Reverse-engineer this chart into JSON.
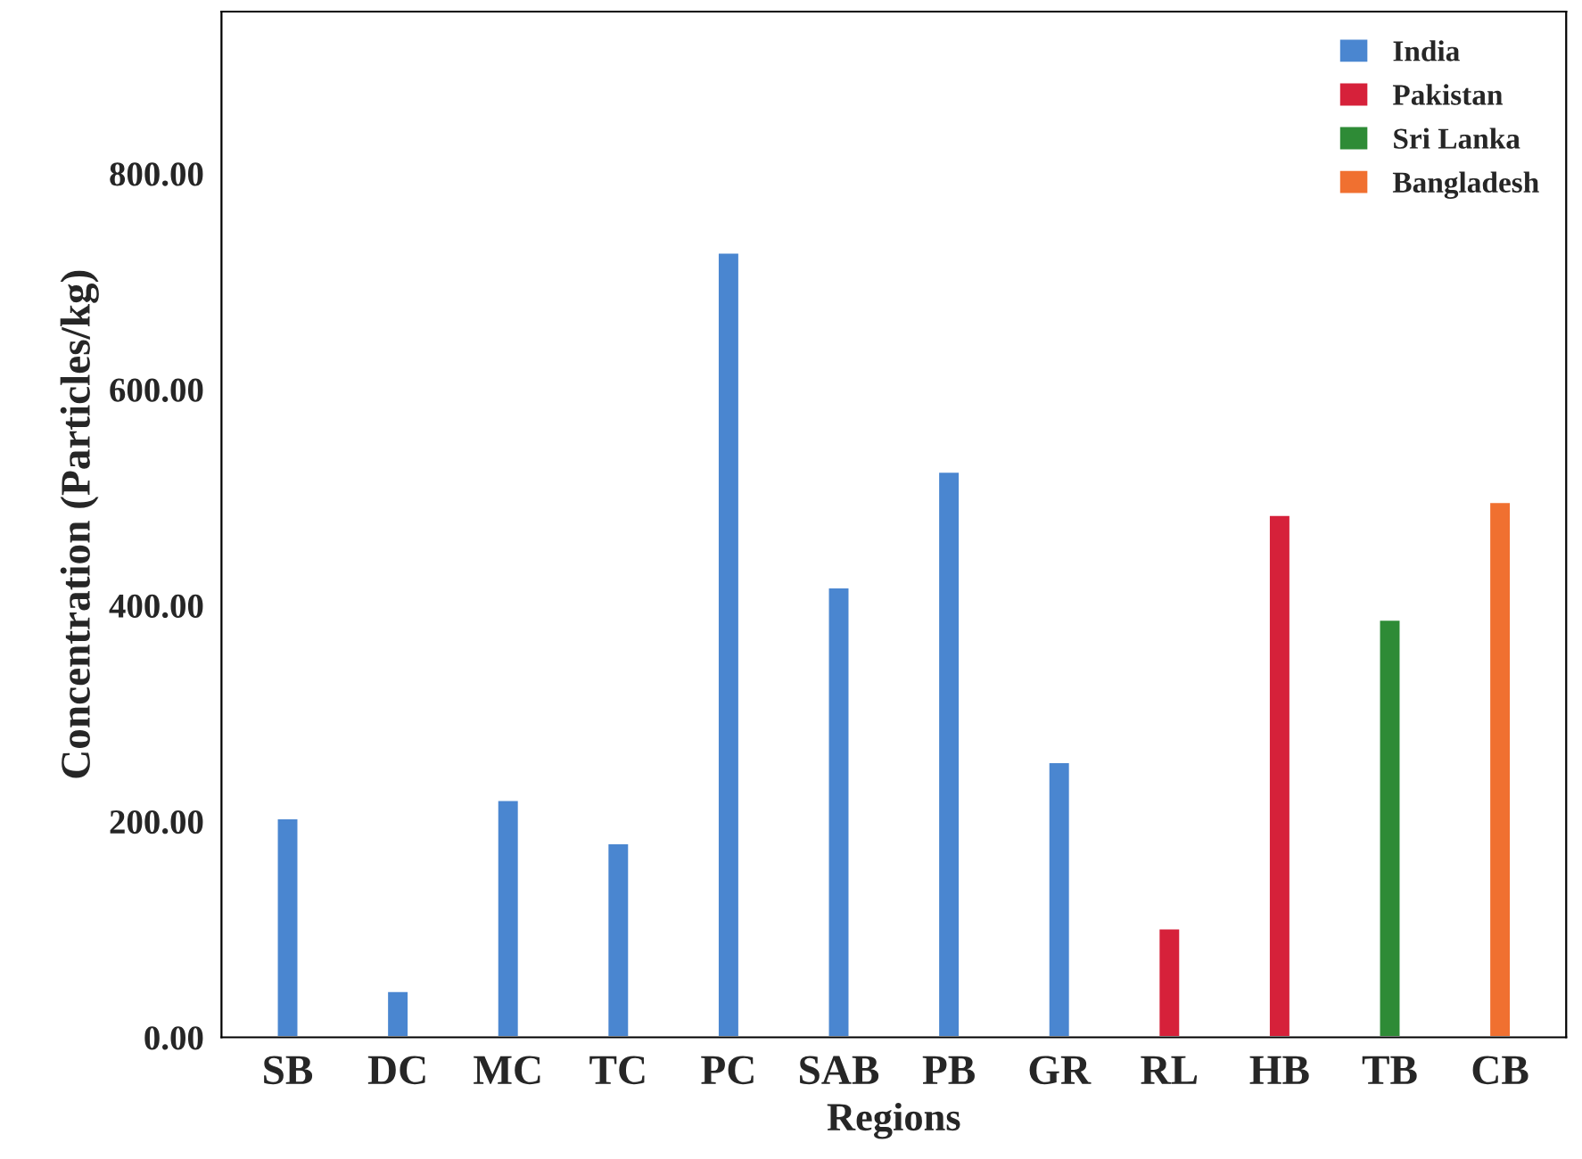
{
  "chart_data": {
    "type": "bar",
    "xlabel": "Regions",
    "ylabel": "Concentration (Particles/kg)",
    "categories": [
      "SB",
      "DC",
      "MC",
      "TC",
      "PC",
      "SAB",
      "PB",
      "GR",
      "RL",
      "HB",
      "TB",
      "CB"
    ],
    "series": [
      {
        "name": "India",
        "color": "#4a86d0",
        "values": [
          203,
          43,
          220,
          180,
          727,
          417,
          524,
          255,
          null,
          null,
          null,
          null
        ]
      },
      {
        "name": "Pakistan",
        "color": "#d6213a",
        "values": [
          null,
          null,
          null,
          null,
          null,
          null,
          null,
          null,
          101,
          484,
          null,
          null
        ]
      },
      {
        "name": "Sri Lanka",
        "color": "#2e8b36",
        "values": [
          null,
          null,
          null,
          null,
          null,
          null,
          null,
          null,
          null,
          null,
          387,
          null
        ]
      },
      {
        "name": "Bangladesh",
        "color": "#f07030",
        "values": [
          null,
          null,
          null,
          null,
          null,
          null,
          null,
          null,
          null,
          null,
          null,
          496
        ]
      }
    ],
    "ylim": [
      0,
      950
    ],
    "yticks": [
      {
        "value": 0,
        "label": "0.00"
      },
      {
        "value": 200,
        "label": "200.00"
      },
      {
        "value": 400,
        "label": "400.00"
      },
      {
        "value": 600,
        "label": "600.00"
      },
      {
        "value": 800,
        "label": "800.00"
      }
    ],
    "grid": false,
    "legend": "top right"
  }
}
